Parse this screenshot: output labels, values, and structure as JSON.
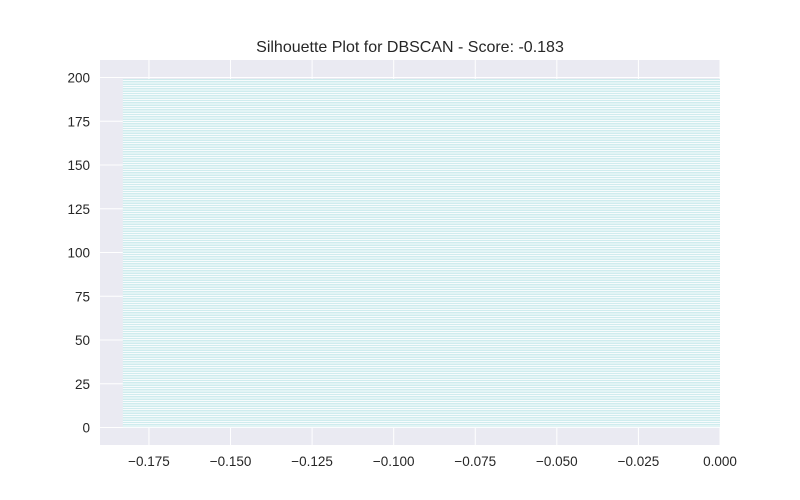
{
  "chart_data": {
    "type": "bar",
    "orientation": "horizontal",
    "title": "Silhouette Plot for DBSCAN - Score: -0.183",
    "xlabel": "",
    "ylabel": "",
    "xlim": [
      -0.19,
      0.0
    ],
    "ylim": [
      -10,
      210
    ],
    "x_ticks": [
      -0.175,
      -0.15,
      -0.125,
      -0.1,
      -0.075,
      -0.05,
      -0.025,
      0.0
    ],
    "x_tick_labels": [
      "−0.175",
      "−0.150",
      "−0.125",
      "−0.100",
      "−0.075",
      "−0.050",
      "−0.025",
      "0.000"
    ],
    "y_ticks": [
      0,
      25,
      50,
      75,
      100,
      125,
      150,
      175,
      200
    ],
    "y_tick_labels": [
      "0",
      "25",
      "50",
      "75",
      "100",
      "125",
      "150",
      "175",
      "200"
    ],
    "series": [
      {
        "sample_count": 199,
        "silhouette_value": -0.183,
        "color": "#a8dde0"
      }
    ],
    "grid": true,
    "style": {
      "axes_facecolor": "#eaeaf2",
      "grid_color": "#ffffff",
      "text_color": "#262626"
    }
  }
}
